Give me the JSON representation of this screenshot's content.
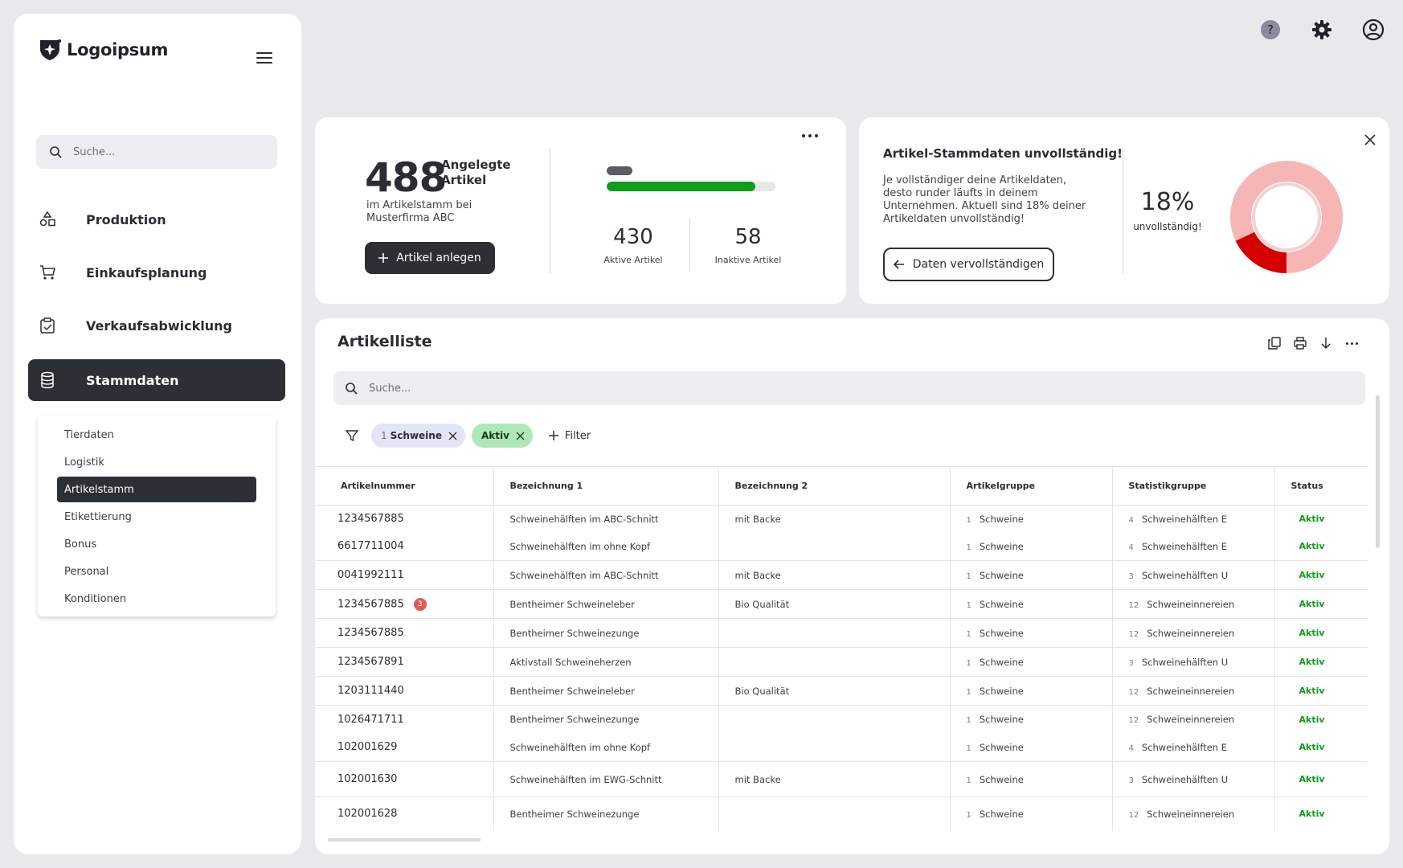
{
  "app": {
    "logo_text": "Logoipsum"
  },
  "sidebar": {
    "search_placeholder": "Suche...",
    "nav": [
      {
        "label": "Produktion",
        "icon": "shapes-icon"
      },
      {
        "label": "Einkaufsplanung",
        "icon": "cart-icon"
      },
      {
        "label": "Verkaufsabwicklung",
        "icon": "clipboard-check-icon"
      },
      {
        "label": "Stammdaten",
        "icon": "database-icon",
        "active": true
      }
    ],
    "submenu": [
      "Tierdaten",
      "Logistik",
      "Artikelstamm",
      "Etikettierung",
      "Bonus",
      "Personal",
      "Konditionen"
    ],
    "submenu_active": "Artikelstamm"
  },
  "topbar": {
    "help_symbol": "?"
  },
  "kpi": {
    "total": "488",
    "title": "Angelegte Artikel",
    "subtitle": "im Artikelstamm bei Musterfirma ABC",
    "button": "Artikel anlegen",
    "active_value": "430",
    "active_label": "Aktive Artikel",
    "inactive_value": "58",
    "inactive_label": "Inaktive Artikel",
    "active_fraction": 0.881
  },
  "warning": {
    "title": "Artikel-Stammdaten unvollständig!",
    "text": "Je vollständiger deine Artikeldaten, desto runder läufts in deinem Unternehmen. Aktuell sind 18% deiner Artikeldaten unvollständig!",
    "button": "Daten vervollständigen",
    "percent": "18%",
    "percent_label": "unvollständig!",
    "incomplete_fraction": 0.18,
    "colors": {
      "incomplete": "#d40000",
      "rest": "#f7b6b6"
    }
  },
  "list": {
    "title": "Artikelliste",
    "search_placeholder": "Suche...",
    "filters": [
      {
        "prefix": "1",
        "label": "Schweine",
        "style": "blue"
      },
      {
        "prefix": "",
        "label": "Aktiv",
        "style": "green"
      }
    ],
    "add_filter": "Filter",
    "columns": [
      "Artikelnummer",
      "Bezeichnung 1",
      "Bezeichnung 2",
      "Artikelgruppe",
      "Statistikgruppe",
      "Status"
    ],
    "rows": [
      {
        "nr": "1234567885",
        "b1": "Schweinehälften im ABC-Schnitt",
        "b2": "mit Backe",
        "gnum": "1",
        "group": "Schweine",
        "snum": "4",
        "stat": "Schweinehälften E",
        "status": "Aktiv"
      },
      {
        "nr": "6617711004",
        "b1": "Schweinehälften im ohne Kopf",
        "b2": "",
        "gnum": "1",
        "group": "Schweine",
        "snum": "4",
        "stat": "Schweinehälften E",
        "status": "Aktiv"
      },
      {
        "nr": "0041992111",
        "b1": "Schweinehälften im ABC-Schnitt",
        "b2": "mit Backe",
        "gnum": "1",
        "group": "Schweine",
        "snum": "3",
        "stat": "Schweinehälften U",
        "status": "Aktiv"
      },
      {
        "nr": "1234567885",
        "badge": "3",
        "b1": "Bentheimer Schweineleber",
        "b2": "Bio Qualität",
        "gnum": "1",
        "group": "Schweine",
        "snum": "12",
        "stat": "Schweineinnereien",
        "status": "Aktiv"
      },
      {
        "nr": "1234567885",
        "b1": "Bentheimer Schweinezunge",
        "b2": "",
        "gnum": "1",
        "group": "Schweine",
        "snum": "12",
        "stat": "Schweineinnereien",
        "status": "Aktiv"
      },
      {
        "nr": "1234567891",
        "b1": "Aktivstall Schweineherzen",
        "b2": "",
        "gnum": "1",
        "group": "Schweine",
        "snum": "3",
        "stat": "Schweinehälften U",
        "status": "Aktiv"
      },
      {
        "nr": "1203111440",
        "b1": "Bentheimer Schweineleber",
        "b2": "Bio Qualität",
        "gnum": "1",
        "group": "Schweine",
        "snum": "12",
        "stat": "Schweineinnereien",
        "status": "Aktiv"
      },
      {
        "nr": "1026471711",
        "b1": "Bentheimer Schweinezunge",
        "b2": "",
        "gnum": "1",
        "group": "Schweine",
        "snum": "12",
        "stat": "Schweineinnereien",
        "status": "Aktiv"
      },
      {
        "nr": "102001629",
        "b1": "Schweinehälften im ohne Kopf",
        "b2": "",
        "gnum": "1",
        "group": "Schweine",
        "snum": "4",
        "stat": "Schweinehälften E",
        "status": "Aktiv"
      },
      {
        "nr": "102001630",
        "b1": "Schweinehälften im EWG-Schnitt",
        "b2": "mit Backe",
        "gnum": "1",
        "group": "Schweine",
        "snum": "3",
        "stat": "Schweinehälften U",
        "status": "Aktiv"
      },
      {
        "nr": "102001628",
        "b1": "Bentheimer Schweinezunge",
        "b2": "",
        "gnum": "1",
        "group": "Schweine",
        "snum": "12",
        "stat": "Schweineinnereien",
        "status": "Aktiv"
      }
    ]
  }
}
